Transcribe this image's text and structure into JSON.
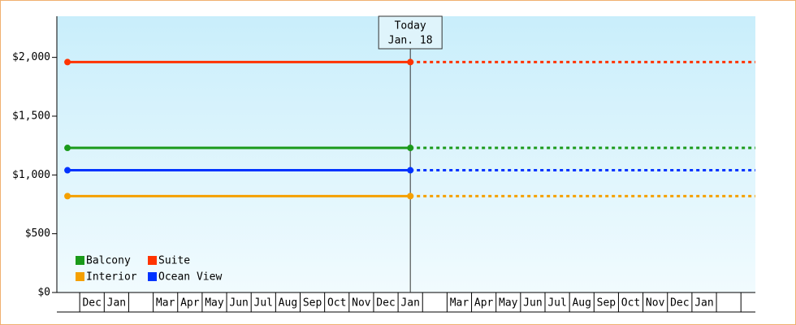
{
  "chart_data": {
    "type": "line",
    "categories": [
      null,
      "Dec",
      "Jan",
      null,
      "Mar",
      "Apr",
      "May",
      "Jun",
      "Jul",
      "Aug",
      "Sep",
      "Oct",
      "Nov",
      "Dec",
      "Jan",
      null,
      "Mar",
      "Apr",
      "May",
      "Jun",
      "Jul",
      "Aug",
      "Sep",
      "Oct",
      "Nov",
      "Dec",
      "Jan",
      null,
      null
    ],
    "series": [
      {
        "name": "Balcony",
        "color": "#1a9a1a",
        "values": [
          1230,
          1230,
          1230,
          1230,
          1230,
          1230,
          1230,
          1230,
          1230,
          1230,
          1230,
          1230,
          1230,
          1230,
          1230,
          null,
          null,
          null,
          null,
          null,
          null,
          null,
          null,
          null,
          null,
          null,
          null,
          null,
          null
        ]
      },
      {
        "name": "Suite",
        "color": "#ff3300",
        "values": [
          1960,
          1960,
          1960,
          1960,
          1960,
          1960,
          1960,
          1960,
          1960,
          1960,
          1960,
          1960,
          1960,
          1960,
          1960,
          null,
          null,
          null,
          null,
          null,
          null,
          null,
          null,
          null,
          null,
          null,
          null,
          null,
          null
        ]
      },
      {
        "name": "Interior",
        "color": "#f5a000",
        "values": [
          820,
          820,
          820,
          820,
          820,
          820,
          820,
          820,
          820,
          820,
          820,
          820,
          820,
          820,
          820,
          null,
          null,
          null,
          null,
          null,
          null,
          null,
          null,
          null,
          null,
          null,
          null,
          null,
          null
        ]
      },
      {
        "name": "Ocean View",
        "color": "#0033ff",
        "values": [
          1040,
          1040,
          1040,
          1040,
          1040,
          1040,
          1040,
          1040,
          1040,
          1040,
          1040,
          1040,
          1040,
          1040,
          1040,
          null,
          null,
          null,
          null,
          null,
          null,
          null,
          null,
          null,
          null,
          null,
          null,
          null,
          null
        ]
      }
    ],
    "annotation": {
      "title": "Today",
      "date": "Jan. 18"
    },
    "ylim": [
      0,
      2350
    ],
    "yticks": [
      {
        "value": 0,
        "label": "$0"
      },
      {
        "value": 500,
        "label": "$500"
      },
      {
        "value": 1000,
        "label": "$1,000"
      },
      {
        "value": 1500,
        "label": "$1,500"
      },
      {
        "value": 2000,
        "label": "$2,000"
      }
    ],
    "legend": "lower left"
  }
}
